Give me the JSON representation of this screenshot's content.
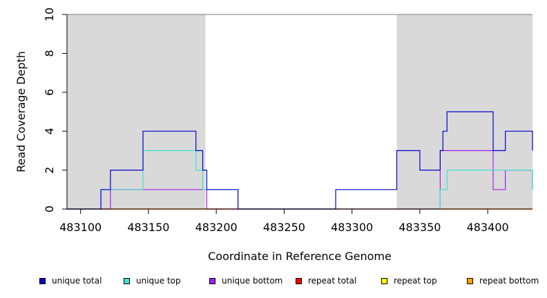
{
  "chart_data": {
    "type": "line",
    "xlabel": "Coordinate in Reference Genome",
    "ylabel": "Read Coverage Depth",
    "xlim": [
      483090,
      483433
    ],
    "ylim": [
      0,
      10
    ],
    "xticks": [
      483100,
      483150,
      483200,
      483250,
      483300,
      483350,
      483400
    ],
    "xtick_labels": [
      "483100",
      "483150",
      "483200",
      "483250",
      "483300",
      "483350",
      "483400"
    ],
    "yticks": [
      0,
      2,
      4,
      6,
      8,
      10
    ],
    "ytick_labels": [
      "0",
      "2",
      "4",
      "6",
      "8",
      "10"
    ],
    "shaded_regions": [
      [
        483090,
        483192
      ],
      [
        483333,
        483433
      ]
    ],
    "shade_color": "#d9d9d9",
    "series": [
      {
        "name": "unique total",
        "color": "#0000cd",
        "x": [
          483090,
          483115,
          483122,
          483146,
          483185,
          483190,
          483193,
          483216,
          483288,
          483333,
          483350,
          483365,
          483367,
          483370,
          483404,
          483413,
          483433
        ],
        "y": [
          0,
          1,
          2,
          4,
          3,
          2,
          1,
          0,
          1,
          3,
          2,
          3,
          4,
          5,
          3,
          4,
          3
        ]
      },
      {
        "name": "unique top",
        "color": "#40e0d0",
        "x": [
          483090,
          483115,
          483122,
          483146,
          483185,
          483190,
          483193,
          483216,
          483365,
          483370,
          483433
        ],
        "y": [
          0,
          1,
          1,
          3,
          2,
          1,
          1,
          0,
          1,
          2,
          1
        ]
      },
      {
        "name": "unique bottom",
        "color": "#a020f0",
        "x": [
          483090,
          483122,
          483193,
          483288,
          483333,
          483350,
          483365,
          483404,
          483413,
          483433
        ],
        "y": [
          0,
          1,
          0,
          0,
          0,
          0,
          3,
          1,
          2,
          1
        ]
      },
      {
        "name": "repeat total",
        "color": "#ff0000",
        "x": [
          483090,
          483433
        ],
        "y": [
          0,
          0
        ]
      },
      {
        "name": "repeat top",
        "color": "#ffff00",
        "x": [
          483090,
          483433
        ],
        "y": [
          0,
          0
        ]
      },
      {
        "name": "repeat bottom",
        "color": "#ffa500",
        "x": [
          483090,
          483433
        ],
        "y": [
          0,
          0
        ]
      }
    ],
    "legend": [
      {
        "label": "unique total",
        "color": "#0000cd"
      },
      {
        "label": "unique top",
        "color": "#40e0d0"
      },
      {
        "label": "unique bottom",
        "color": "#a020f0"
      },
      {
        "label": "repeat total",
        "color": "#ff0000"
      },
      {
        "label": "repeat top",
        "color": "#ffff00"
      },
      {
        "label": "repeat bottom",
        "color": "#ffa500"
      }
    ],
    "legend_position": "bottom"
  }
}
